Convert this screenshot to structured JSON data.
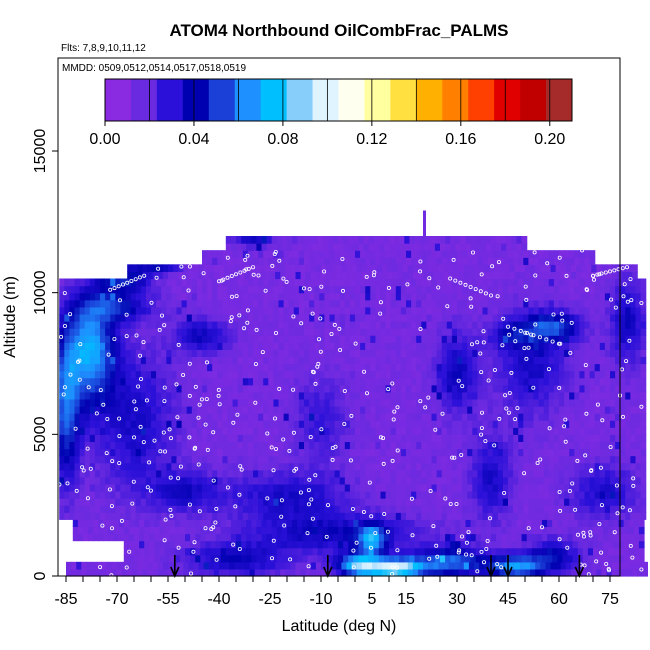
{
  "chart_data": {
    "type": "heatmap",
    "title": "ATOM4 Northbound OilCombFrac_PALMS",
    "subtitle_flights": "Flts: 7,8,9,10,11,12",
    "subtitle_dates": "MMDD: 0509,0512,0514,0517,0518,0519",
    "xlabel": "Latitude (deg N)",
    "ylabel": "Altitude (m)",
    "xlim": [
      -87,
      87
    ],
    "ylim": [
      0,
      17000
    ],
    "x_ticks": [
      -85,
      -70,
      -55,
      -40,
      -25,
      -10,
      5,
      15,
      30,
      45,
      60,
      75
    ],
    "x_tick_labels": [
      "-85",
      "-70",
      "-55",
      "-40",
      "-25",
      "-10",
      "5",
      "15",
      "30",
      "45",
      "60",
      "75"
    ],
    "y_ticks": [
      0,
      5000,
      10000,
      15000
    ],
    "y_tick_labels": [
      "0",
      "5000",
      "10000",
      "15000"
    ],
    "colorbar": {
      "min": 0.0,
      "max": 0.21,
      "ticks": [
        0.0,
        0.04,
        0.08,
        0.12,
        0.16,
        0.2
      ],
      "tick_labels": [
        "0.00",
        "0.04",
        "0.08",
        "0.12",
        "0.16",
        "0.20"
      ],
      "colors": [
        "#8a2be2",
        "#6a2ae0",
        "#2a10d8",
        "#0000b0",
        "#1a40d8",
        "#1e90ff",
        "#00bfff",
        "#87cefa",
        "#e0f4ff",
        "#fffff0",
        "#ffffa0",
        "#ffe040",
        "#ffb000",
        "#ff8000",
        "#ff4000",
        "#e00000",
        "#c00000",
        "#a52a2a"
      ]
    },
    "arrows_latitude": [
      -53,
      -8,
      40,
      45,
      66
    ],
    "field": {
      "background_value": 0.005,
      "coverage": [
        {
          "alt_min": 0,
          "alt_max": 500,
          "lat_min": -85,
          "lat_max": 85
        },
        {
          "alt_min": 500,
          "alt_max": 1100,
          "lat_min": -68,
          "lat_max": 85
        },
        {
          "alt_min": 1100,
          "alt_max": 2000,
          "lat_min": -83,
          "lat_max": 85
        },
        {
          "alt_min": 2000,
          "alt_max": 10500,
          "lat_min": -87,
          "lat_max": 85
        },
        {
          "alt_min": 10500,
          "alt_max": 11000,
          "lat_min": -67,
          "lat_max": 82
        },
        {
          "alt_min": 11000,
          "alt_max": 11500,
          "lat_min": -45,
          "lat_max": 70
        },
        {
          "alt_min": 11500,
          "alt_max": 12000,
          "lat_min": -38,
          "lat_max": 50
        }
      ],
      "features": [
        {
          "lat": -78,
          "alt": 8000,
          "rx": 7,
          "ry": 1800,
          "v": 0.06
        },
        {
          "lat": -85,
          "alt": 6000,
          "rx": 4,
          "ry": 2500,
          "v": 0.045
        },
        {
          "lat": -68,
          "alt": 10500,
          "rx": 8,
          "ry": 500,
          "v": 0.035
        },
        {
          "lat": -58,
          "alt": 11300,
          "rx": 6,
          "ry": 400,
          "v": 0.075
        },
        {
          "lat": -52,
          "alt": 11400,
          "rx": 2,
          "ry": 300,
          "v": 0.1
        },
        {
          "lat": -70,
          "alt": 9500,
          "rx": 10,
          "ry": 500,
          "v": 0.03
        },
        {
          "lat": -45,
          "alt": 8500,
          "rx": 8,
          "ry": 600,
          "v": 0.025
        },
        {
          "lat": -65,
          "alt": 5500,
          "rx": 12,
          "ry": 2500,
          "v": 0.022
        },
        {
          "lat": -50,
          "alt": 3000,
          "rx": 10,
          "ry": 700,
          "v": 0.022
        },
        {
          "lat": -20,
          "alt": 2800,
          "rx": 18,
          "ry": 900,
          "v": 0.022
        },
        {
          "lat": -5,
          "alt": 1500,
          "rx": 25,
          "ry": 700,
          "v": 0.025
        },
        {
          "lat": 5,
          "alt": 1300,
          "rx": 4,
          "ry": 500,
          "v": 0.05
        },
        {
          "lat": 1,
          "alt": 400,
          "rx": 6,
          "ry": 400,
          "v": 0.07
        },
        {
          "lat": 12,
          "alt": 300,
          "rx": 8,
          "ry": 350,
          "v": 0.09
        },
        {
          "lat": 28,
          "alt": 500,
          "rx": 10,
          "ry": 500,
          "v": 0.05
        },
        {
          "lat": 47,
          "alt": 350,
          "rx": 8,
          "ry": 400,
          "v": 0.055
        },
        {
          "lat": 58,
          "alt": 700,
          "rx": 8,
          "ry": 600,
          "v": 0.03
        },
        {
          "lat": -35,
          "alt": 600,
          "rx": 15,
          "ry": 600,
          "v": 0.025
        },
        {
          "lat": 30,
          "alt": 7200,
          "rx": 6,
          "ry": 1400,
          "v": 0.025
        },
        {
          "lat": 52,
          "alt": 7500,
          "rx": 10,
          "ry": 1800,
          "v": 0.022
        },
        {
          "lat": 58,
          "alt": 8800,
          "rx": 8,
          "ry": 500,
          "v": 0.04
        },
        {
          "lat": 45,
          "alt": 8500,
          "rx": 6,
          "ry": 500,
          "v": 0.02
        },
        {
          "lat": 40,
          "alt": 3500,
          "rx": 6,
          "ry": 1500,
          "v": 0.022
        },
        {
          "lat": 73,
          "alt": 3000,
          "rx": 10,
          "ry": 1000,
          "v": 0.02
        },
        {
          "lat": 80,
          "alt": 9000,
          "rx": 5,
          "ry": 1500,
          "v": 0.025
        },
        {
          "lat": -30,
          "alt": 11900,
          "rx": 6,
          "ry": 250,
          "v": 0.025
        },
        {
          "lat": -10,
          "alt": 5500,
          "rx": 8,
          "ry": 1500,
          "v": 0.015
        }
      ]
    }
  }
}
